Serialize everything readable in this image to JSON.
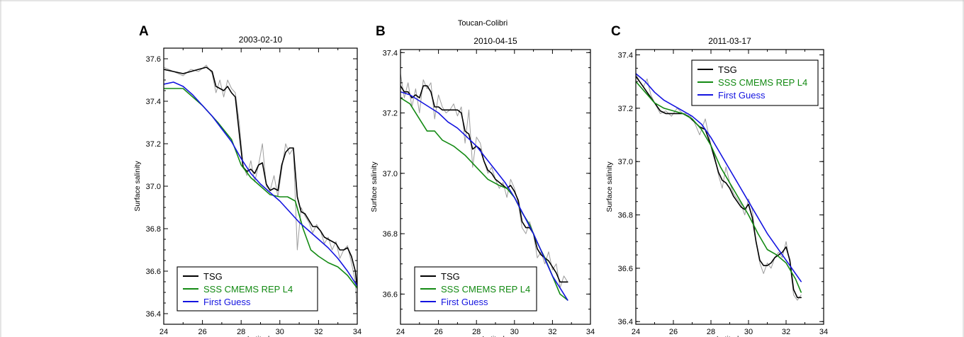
{
  "suptitle": "Toucan-Colibri",
  "colors": {
    "raw": "#8c8c8c",
    "tsg": "#000000",
    "cmems": "#138a13",
    "first_guess": "#1414e0",
    "frame": "#c9c9c9"
  },
  "chart_data": [
    {
      "type": "line",
      "panel": "A",
      "title": "2003-02-10",
      "xlabel": "Latitude",
      "ylabel": "Surface salinity",
      "xlim": [
        24,
        34
      ],
      "ylim": [
        36.35,
        37.65
      ],
      "xticks": [
        24,
        26,
        28,
        30,
        32,
        34
      ],
      "yticks": [
        36.4,
        36.6,
        36.8,
        37.0,
        37.2,
        37.4,
        37.6
      ],
      "ytick_labels": [
        "36.4",
        "36.6",
        "36.8",
        "37.0",
        "37.2",
        "37.4",
        "37.6"
      ],
      "legend": {
        "position": "lower-left",
        "entries": [
          "TSG",
          "SSS CMEMS REP L4",
          "First Guess"
        ]
      },
      "series": [
        {
          "name": "TSG",
          "style": "raw",
          "x": [
            24.0,
            24.5,
            25.0,
            25.4,
            25.8,
            26.2,
            26.5,
            26.7,
            26.9,
            27.1,
            27.3,
            27.5,
            27.7,
            27.9,
            28.1,
            28.3,
            28.5,
            28.7,
            28.9,
            29.1,
            29.3,
            29.5,
            29.7,
            29.9,
            30.1,
            30.3,
            30.5,
            30.7,
            30.9,
            31.1,
            31.3,
            31.5,
            31.7,
            31.9,
            32.1,
            32.3,
            32.5,
            32.7,
            32.9,
            33.1,
            33.3,
            33.5,
            33.7,
            33.9,
            34.0
          ],
          "y": [
            37.56,
            37.54,
            37.52,
            37.55,
            37.54,
            37.57,
            37.53,
            37.44,
            37.5,
            37.42,
            37.5,
            37.46,
            37.44,
            37.3,
            37.1,
            37.05,
            37.12,
            37.02,
            37.1,
            37.2,
            37.0,
            36.98,
            37.05,
            36.95,
            37.08,
            37.2,
            37.15,
            37.18,
            36.7,
            36.9,
            36.86,
            36.83,
            36.78,
            36.82,
            36.79,
            36.73,
            36.76,
            36.7,
            36.74,
            36.66,
            36.7,
            36.72,
            36.64,
            36.55,
            36.4
          ]
        },
        {
          "name": "TSG",
          "style": "smooth",
          "x": [
            24.0,
            24.5,
            25.0,
            25.4,
            25.8,
            26.2,
            26.5,
            26.7,
            26.9,
            27.1,
            27.3,
            27.5,
            27.7,
            27.9,
            28.1,
            28.3,
            28.5,
            28.7,
            28.9,
            29.1,
            29.3,
            29.5,
            29.7,
            29.9,
            30.1,
            30.3,
            30.5,
            30.7,
            30.9,
            31.1,
            31.3,
            31.5,
            31.7,
            31.9,
            32.1,
            32.3,
            32.5,
            32.7,
            32.9,
            33.1,
            33.3,
            33.5,
            33.7,
            33.9,
            34.0
          ],
          "y": [
            37.55,
            37.54,
            37.53,
            37.54,
            37.55,
            37.56,
            37.54,
            37.47,
            37.46,
            37.45,
            37.47,
            37.44,
            37.42,
            37.25,
            37.09,
            37.07,
            37.08,
            37.06,
            37.1,
            37.11,
            37.01,
            36.98,
            36.99,
            36.98,
            37.1,
            37.16,
            37.18,
            37.18,
            36.95,
            36.88,
            36.87,
            36.84,
            36.81,
            36.81,
            36.79,
            36.76,
            36.75,
            36.74,
            36.73,
            36.7,
            36.7,
            36.71,
            36.67,
            36.6,
            36.52
          ]
        },
        {
          "name": "SSS CMEMS REP L4",
          "x": [
            24.0,
            25.0,
            26.0,
            26.8,
            27.5,
            28.0,
            28.5,
            29.0,
            29.5,
            30.0,
            30.4,
            30.8,
            31.2,
            31.6,
            32.0,
            32.5,
            33.0,
            33.5,
            34.0
          ],
          "y": [
            37.46,
            37.46,
            37.38,
            37.3,
            37.22,
            37.1,
            37.04,
            37.0,
            36.96,
            36.95,
            36.95,
            36.93,
            36.8,
            36.7,
            36.67,
            36.64,
            36.62,
            36.58,
            36.52
          ]
        },
        {
          "name": "First Guess",
          "x": [
            24.0,
            24.5,
            25.0,
            25.5,
            26.0,
            26.5,
            27.0,
            27.5,
            28.0,
            28.5,
            29.0,
            29.5,
            30.0,
            30.5,
            31.0,
            31.5,
            32.0,
            32.5,
            33.0,
            33.5,
            34.0
          ],
          "y": [
            37.48,
            37.49,
            37.47,
            37.43,
            37.38,
            37.33,
            37.27,
            37.21,
            37.13,
            37.06,
            37.01,
            36.97,
            36.93,
            36.88,
            36.83,
            36.79,
            36.75,
            36.71,
            36.66,
            36.6,
            36.53
          ]
        }
      ]
    },
    {
      "type": "line",
      "panel": "B",
      "title": "2010-04-15",
      "xlabel": "Latitude",
      "ylabel": "Surface salinity",
      "xlim": [
        24,
        34
      ],
      "ylim": [
        36.5,
        37.41
      ],
      "xticks": [
        24,
        26,
        28,
        30,
        32,
        34
      ],
      "yticks": [
        36.6,
        36.8,
        37.0,
        37.2,
        37.4
      ],
      "ytick_labels": [
        "36.6",
        "36.8",
        "37.0",
        "37.2",
        "37.4"
      ],
      "legend": {
        "position": "lower-left",
        "entries": [
          "TSG",
          "SSS CMEMS REP L4",
          "First Guess"
        ]
      },
      "series": [
        {
          "name": "TSG",
          "style": "raw",
          "x": [
            24.0,
            24.2,
            24.4,
            24.6,
            24.8,
            25.0,
            25.2,
            25.4,
            25.6,
            25.8,
            26.0,
            26.2,
            26.4,
            26.6,
            26.8,
            27.0,
            27.2,
            27.4,
            27.6,
            27.8,
            28.0,
            28.2,
            28.4,
            28.6,
            28.8,
            29.0,
            29.2,
            29.4,
            29.6,
            29.8,
            30.0,
            30.2,
            30.4,
            30.6,
            30.8,
            31.0,
            31.2,
            31.4,
            31.6,
            31.8,
            32.0,
            32.2,
            32.4,
            32.6,
            32.8
          ],
          "y": [
            37.33,
            37.25,
            37.3,
            37.22,
            37.28,
            37.2,
            37.31,
            37.28,
            37.3,
            37.18,
            37.26,
            37.22,
            37.2,
            37.21,
            37.23,
            37.19,
            37.22,
            37.1,
            37.21,
            37.02,
            37.12,
            37.1,
            37.04,
            37.0,
            37.02,
            36.98,
            36.95,
            36.97,
            36.92,
            36.98,
            36.95,
            36.9,
            36.82,
            36.8,
            36.84,
            36.8,
            36.72,
            36.74,
            36.7,
            36.74,
            36.68,
            36.7,
            36.62,
            36.66,
            36.64
          ]
        },
        {
          "name": "TSG",
          "style": "smooth",
          "x": [
            24.0,
            24.2,
            24.4,
            24.6,
            24.8,
            25.0,
            25.2,
            25.4,
            25.6,
            25.8,
            26.0,
            26.2,
            26.4,
            26.6,
            26.8,
            27.0,
            27.2,
            27.4,
            27.6,
            27.8,
            28.0,
            28.2,
            28.4,
            28.6,
            28.8,
            29.0,
            29.2,
            29.4,
            29.6,
            29.8,
            30.0,
            30.2,
            30.4,
            30.6,
            30.8,
            31.0,
            31.2,
            31.4,
            31.6,
            31.8,
            32.0,
            32.2,
            32.4,
            32.6,
            32.8
          ],
          "y": [
            37.29,
            37.27,
            37.27,
            37.25,
            37.26,
            37.25,
            37.29,
            37.29,
            37.27,
            37.22,
            37.22,
            37.21,
            37.21,
            37.21,
            37.21,
            37.21,
            37.2,
            37.14,
            37.13,
            37.08,
            37.09,
            37.08,
            37.04,
            37.01,
            37.0,
            36.98,
            36.97,
            36.96,
            36.95,
            36.96,
            36.94,
            36.91,
            36.84,
            36.82,
            36.82,
            36.8,
            36.75,
            36.73,
            36.72,
            36.71,
            36.69,
            36.67,
            36.64,
            36.64,
            36.64
          ]
        },
        {
          "name": "SSS CMEMS REP L4",
          "x": [
            24.0,
            24.5,
            25.0,
            25.4,
            25.8,
            26.2,
            26.8,
            27.4,
            28.0,
            28.6,
            29.2,
            29.6,
            30.0,
            30.4,
            30.8,
            31.2,
            31.6,
            32.0,
            32.4,
            32.8
          ],
          "y": [
            37.25,
            37.23,
            37.18,
            37.14,
            37.14,
            37.11,
            37.09,
            37.06,
            37.02,
            36.98,
            36.96,
            36.95,
            36.92,
            36.87,
            36.83,
            36.77,
            36.72,
            36.66,
            36.6,
            36.58
          ]
        },
        {
          "name": "First Guess",
          "x": [
            24.0,
            24.5,
            25.0,
            25.5,
            26.0,
            26.5,
            27.0,
            27.5,
            28.0,
            28.5,
            29.0,
            29.5,
            30.0,
            30.5,
            31.0,
            31.5,
            32.0,
            32.5,
            32.8
          ],
          "y": [
            37.27,
            37.26,
            37.24,
            37.22,
            37.2,
            37.17,
            37.15,
            37.12,
            37.09,
            37.05,
            37.01,
            36.97,
            36.92,
            36.86,
            36.8,
            36.73,
            36.66,
            36.61,
            36.58
          ]
        }
      ]
    },
    {
      "type": "line",
      "panel": "C",
      "title": "2011-03-17",
      "xlabel": "Latitude",
      "ylabel": "Surface salinity",
      "xlim": [
        24,
        34
      ],
      "ylim": [
        36.39,
        37.42
      ],
      "xticks": [
        24,
        26,
        28,
        30,
        32,
        34
      ],
      "yticks": [
        36.4,
        36.6,
        36.8,
        37.0,
        37.2,
        37.4
      ],
      "ytick_labels": [
        "36.4",
        "36.6",
        "36.8",
        "37.0",
        "37.2",
        "37.4"
      ],
      "legend": {
        "position": "upper-center",
        "entries": [
          "TSG",
          "SSS CMEMS REP L4",
          "First Guess"
        ]
      },
      "series": [
        {
          "name": "TSG",
          "style": "raw",
          "x": [
            24.0,
            24.2,
            24.4,
            24.6,
            24.8,
            25.0,
            25.3,
            25.6,
            25.9,
            26.2,
            26.5,
            26.8,
            27.1,
            27.4,
            27.7,
            28.0,
            28.2,
            28.4,
            28.6,
            28.8,
            29.0,
            29.2,
            29.4,
            29.6,
            29.8,
            30.0,
            30.2,
            30.4,
            30.6,
            30.8,
            31.0,
            31.2,
            31.4,
            31.6,
            31.8,
            32.0,
            32.2,
            32.4,
            32.6,
            32.8
          ],
          "y": [
            37.33,
            37.3,
            37.28,
            37.31,
            37.25,
            37.22,
            37.18,
            37.19,
            37.17,
            37.2,
            37.18,
            37.18,
            37.15,
            37.1,
            37.16,
            37.06,
            37.02,
            36.95,
            36.9,
            36.98,
            36.92,
            36.88,
            36.86,
            36.84,
            36.8,
            36.86,
            36.82,
            36.7,
            36.62,
            36.58,
            36.62,
            36.6,
            36.64,
            36.66,
            36.64,
            36.7,
            36.62,
            36.5,
            36.48,
            36.5
          ]
        },
        {
          "name": "TSG",
          "style": "smooth",
          "x": [
            24.0,
            24.2,
            24.4,
            24.6,
            24.8,
            25.0,
            25.3,
            25.6,
            25.9,
            26.2,
            26.5,
            26.8,
            27.1,
            27.4,
            27.7,
            28.0,
            28.2,
            28.4,
            28.6,
            28.8,
            29.0,
            29.2,
            29.4,
            29.6,
            29.8,
            30.0,
            30.2,
            30.4,
            30.6,
            30.8,
            31.0,
            31.2,
            31.4,
            31.6,
            31.8,
            32.0,
            32.2,
            32.4,
            32.6,
            32.8
          ],
          "y": [
            37.32,
            37.3,
            37.28,
            37.26,
            37.24,
            37.22,
            37.19,
            37.18,
            37.18,
            37.18,
            37.18,
            37.17,
            37.15,
            37.13,
            37.12,
            37.06,
            37.01,
            36.96,
            36.93,
            36.92,
            36.9,
            36.87,
            36.85,
            36.83,
            36.82,
            36.84,
            36.79,
            36.7,
            36.63,
            36.61,
            36.61,
            36.62,
            36.64,
            36.65,
            36.66,
            36.68,
            36.63,
            36.52,
            36.49,
            36.49
          ]
        },
        {
          "name": "SSS CMEMS REP L4",
          "x": [
            24.0,
            24.5,
            25.0,
            25.5,
            26.0,
            26.5,
            27.0,
            27.5,
            28.0,
            28.5,
            29.0,
            29.5,
            30.0,
            30.5,
            31.0,
            31.5,
            32.0,
            32.5,
            32.8
          ],
          "y": [
            37.3,
            37.26,
            37.22,
            37.2,
            37.19,
            37.18,
            37.16,
            37.12,
            37.06,
            36.98,
            36.92,
            36.86,
            36.8,
            36.73,
            36.67,
            36.65,
            36.62,
            36.56,
            36.51
          ]
        },
        {
          "name": "First Guess",
          "x": [
            24.0,
            24.5,
            25.0,
            25.5,
            26.0,
            26.5,
            27.0,
            27.5,
            28.0,
            28.5,
            29.0,
            29.5,
            30.0,
            30.5,
            31.0,
            31.5,
            32.0,
            32.5,
            32.8
          ],
          "y": [
            37.33,
            37.3,
            37.26,
            37.23,
            37.21,
            37.19,
            37.17,
            37.14,
            37.09,
            37.03,
            36.97,
            36.91,
            36.85,
            36.79,
            36.73,
            36.68,
            36.63,
            36.58,
            36.55
          ]
        }
      ]
    }
  ]
}
